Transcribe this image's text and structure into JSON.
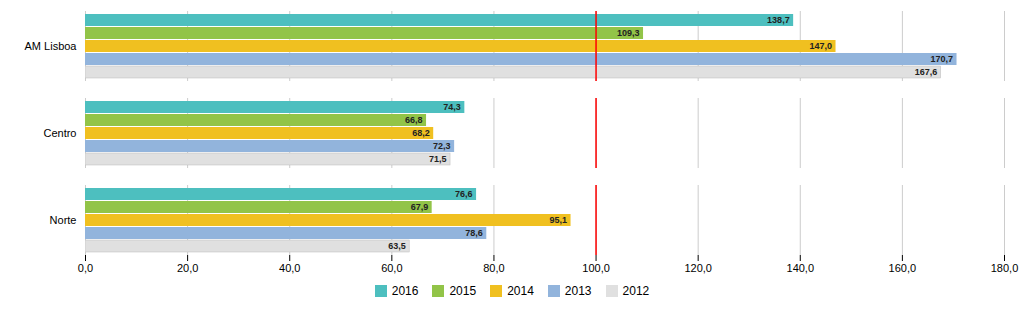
{
  "chart_data": {
    "type": "bar",
    "orientation": "horizontal",
    "categories": [
      "Norte",
      "Centro",
      "AM Lisboa"
    ],
    "series": [
      {
        "name": "2016",
        "color": "#4DBFBF",
        "values": [
          76.6,
          74.3,
          138.7
        ],
        "value_labels": [
          "76,6",
          "74,3",
          "138,7"
        ]
      },
      {
        "name": "2015",
        "color": "#92C448",
        "values": [
          67.9,
          66.8,
          109.3
        ],
        "value_labels": [
          "67,9",
          "66,8",
          "109,3"
        ]
      },
      {
        "name": "2014",
        "color": "#F0C020",
        "values": [
          95.1,
          68.2,
          147.0
        ],
        "value_labels": [
          "95,1",
          "68,2",
          "147,0"
        ]
      },
      {
        "name": "2013",
        "color": "#92B4DC",
        "values": [
          78.6,
          72.3,
          170.7
        ],
        "value_labels": [
          "78,6",
          "72,3",
          "170,7"
        ]
      },
      {
        "name": "2012",
        "color": "#E0E0E0",
        "values": [
          63.5,
          71.5,
          167.6
        ],
        "value_labels": [
          "63,5",
          "71,5",
          "167,6"
        ]
      }
    ],
    "xlim": [
      0,
      180
    ],
    "xticks": [
      {
        "value": 0,
        "label": "0,0"
      },
      {
        "value": 20,
        "label": "20,0"
      },
      {
        "value": 40,
        "label": "40,0"
      },
      {
        "value": 60,
        "label": "60,0"
      },
      {
        "value": 80,
        "label": "80,0"
      },
      {
        "value": 100,
        "label": "100,0"
      },
      {
        "value": 120,
        "label": "120,0"
      },
      {
        "value": 140,
        "label": "140,0"
      },
      {
        "value": 160,
        "label": "160,0"
      },
      {
        "value": 180,
        "label": "180,0"
      }
    ],
    "reference_lines": [
      {
        "x": 100.0,
        "color": "red"
      }
    ],
    "grid": true,
    "data_labels": true,
    "legend": "bottom"
  }
}
